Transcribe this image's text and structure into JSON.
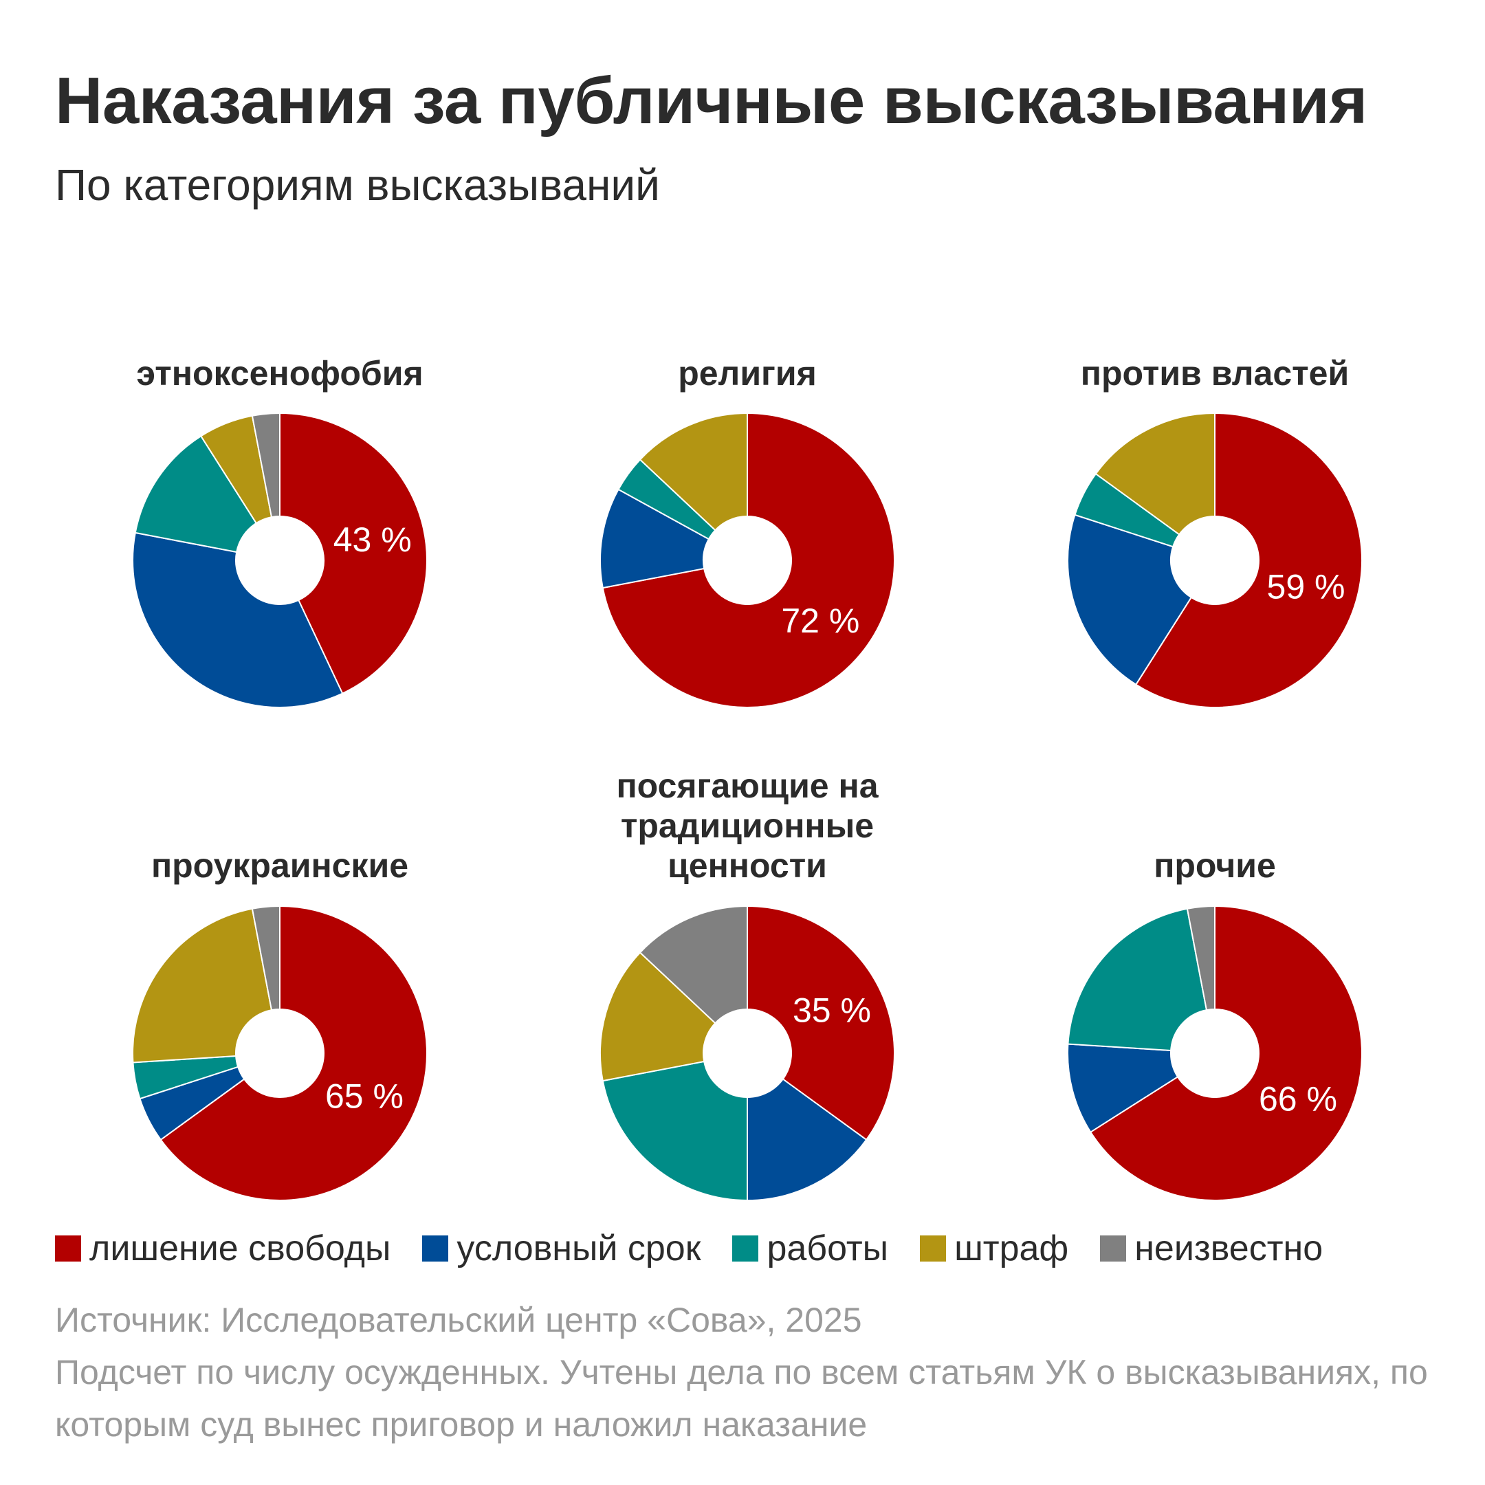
{
  "title": "Наказания за публичные высказывания",
  "subtitle": "По категориям высказываний",
  "colors": {
    "lishenie": "#b30000",
    "uslovny": "#004c97",
    "raboty": "#008c87",
    "shtraf": "#b39513",
    "neizvestno": "#808080"
  },
  "legend": [
    {
      "key": "lishenie",
      "label": "лишение свободы"
    },
    {
      "key": "uslovny",
      "label": "условный срок"
    },
    {
      "key": "raboty",
      "label": "работы"
    },
    {
      "key": "shtraf",
      "label": "штраф"
    },
    {
      "key": "neizvestno",
      "label": "неизвестно"
    }
  ],
  "chart_data": [
    {
      "type": "pie",
      "title": "этноксенофобия",
      "label": "43 %",
      "values": {
        "lishenie": 43,
        "uslovny": 35,
        "raboty": 13,
        "shtraf": 6,
        "neizvestno": 3
      }
    },
    {
      "type": "pie",
      "title": "религия",
      "label": "72 %",
      "values": {
        "lishenie": 72,
        "uslovny": 11,
        "raboty": 4,
        "shtraf": 13,
        "neizvestno": 0
      }
    },
    {
      "type": "pie",
      "title": "против властей",
      "label": "59 %",
      "values": {
        "lishenie": 59,
        "uslovny": 21,
        "raboty": 5,
        "shtraf": 15,
        "neizvestno": 0
      }
    },
    {
      "type": "pie",
      "title": "проукраинские",
      "label": "65 %",
      "values": {
        "lishenie": 65,
        "uslovny": 5,
        "raboty": 4,
        "shtraf": 23,
        "neizvestno": 3
      }
    },
    {
      "type": "pie",
      "title": "посягающие на традиционные ценности",
      "label": "35 %",
      "values": {
        "lishenie": 35,
        "uslovny": 15,
        "raboty": 22,
        "shtraf": 15,
        "neizvestno": 13
      }
    },
    {
      "type": "pie",
      "title": "прочие",
      "label": "66 %",
      "values": {
        "lishenie": 66,
        "uslovny": 10,
        "raboty": 21,
        "shtraf": 0,
        "neizvestno": 3
      }
    }
  ],
  "source": {
    "line1": "Источник: Исследовательский центр «Сова», 2025",
    "line2": "Подсчет по числу осужденных. Учтены дела по всем статьям УК о высказываниях, по которым суд вынес приговор и наложил наказание"
  }
}
